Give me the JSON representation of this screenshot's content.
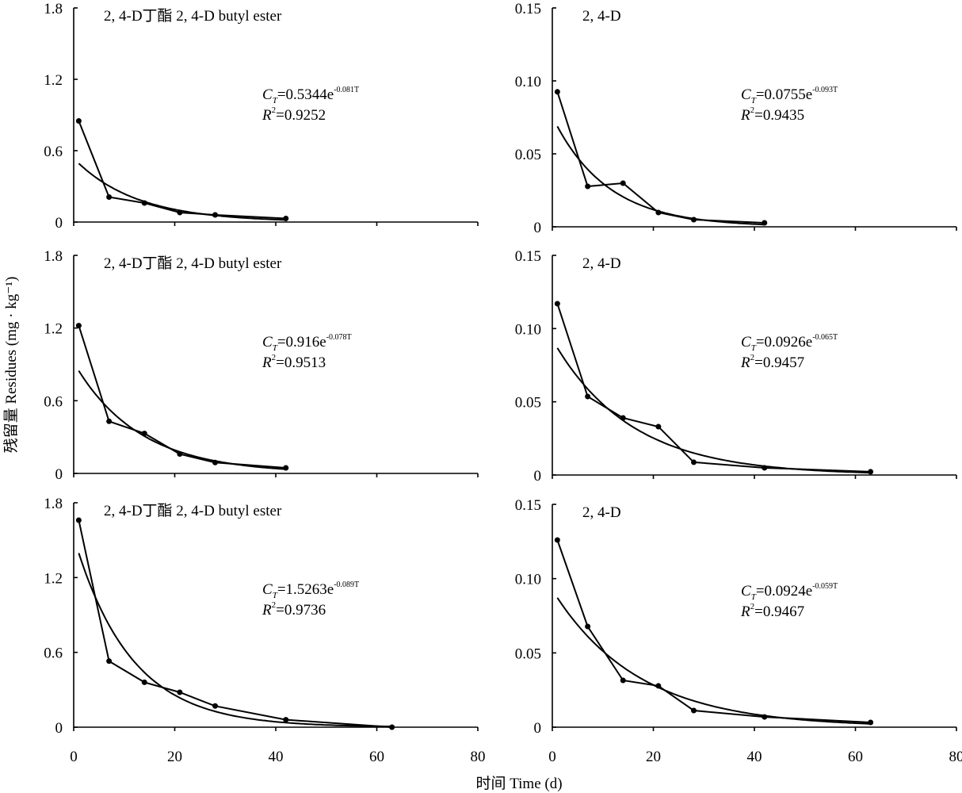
{
  "chart_data": {
    "type": "line",
    "ylabel": "残留量 Residues (mg · kg⁻¹)",
    "xlabel": "时间 Time (d)",
    "xlim": [
      0,
      80
    ],
    "x_ticks": [
      "0",
      "20",
      "40",
      "60",
      "80"
    ],
    "panels": [
      {
        "title": "2, 4-D丁酯 2, 4-D butyl ester",
        "ylim": [
          0,
          1.8
        ],
        "y_ticks": [
          "0",
          "0.6",
          "1.2",
          "1.8"
        ],
        "x": [
          1,
          7,
          14,
          21,
          28,
          42
        ],
        "y": [
          0.85,
          0.21,
          0.16,
          0.08,
          0.06,
          0.03
        ],
        "fit": {
          "a": 0.5344,
          "k": 0.081,
          "x_range": [
            1,
            42
          ]
        },
        "equation_coef": "0.5344",
        "equation_exp": "-0.081T",
        "r2": "0.9252"
      },
      {
        "title": "2, 4-D",
        "ylim": [
          0,
          0.15
        ],
        "y_ticks": [
          "0",
          "0.05",
          "0.10",
          "0.15"
        ],
        "x": [
          1,
          7,
          14,
          21,
          28,
          42
        ],
        "y": [
          0.0925,
          0.0277,
          0.0299,
          0.0098,
          0.0049,
          0.0027
        ],
        "fit": {
          "a": 0.0755,
          "k": 0.093,
          "x_range": [
            1,
            42
          ]
        },
        "equation_coef": "0.0755",
        "equation_exp": "-0.093T",
        "r2": "0.9435"
      },
      {
        "title": "2, 4-D丁酯 2, 4-D butyl ester",
        "ylim": [
          0,
          1.8
        ],
        "y_ticks": [
          "0",
          "0.6",
          "1.2",
          "1.8"
        ],
        "x": [
          1,
          7,
          14,
          21,
          28,
          42
        ],
        "y": [
          1.22,
          0.43,
          0.33,
          0.16,
          0.09,
          0.046
        ],
        "fit": {
          "a": 0.916,
          "k": 0.078,
          "x_range": [
            1,
            42
          ]
        },
        "equation_coef": "0.916",
        "equation_exp": "-0.078T",
        "r2": "0.9513"
      },
      {
        "title": "2, 4-D",
        "ylim": [
          0,
          0.15
        ],
        "y_ticks": [
          "0",
          "0.05",
          "0.10",
          "0.15"
        ],
        "x": [
          1,
          7,
          14,
          21,
          28,
          42,
          63
        ],
        "y": [
          0.117,
          0.0536,
          0.039,
          0.033,
          0.0087,
          0.0049,
          0.0022
        ],
        "fit": {
          "a": 0.0926,
          "k": 0.065,
          "x_range": [
            1,
            63
          ]
        },
        "equation_coef": "0.0926",
        "equation_exp": "-0.065T",
        "r2": "0.9457"
      },
      {
        "title": "2, 4-D丁酯 2, 4-D butyl ester",
        "ylim": [
          0,
          1.8
        ],
        "y_ticks": [
          "0",
          "0.6",
          "1.2",
          "1.8"
        ],
        "x": [
          1,
          7,
          14,
          21,
          28,
          42,
          63
        ],
        "y": [
          1.66,
          0.53,
          0.36,
          0.28,
          0.17,
          0.06,
          0.0
        ],
        "fit": {
          "a": 1.5263,
          "k": 0.089,
          "x_range": [
            1,
            63
          ]
        },
        "equation_coef": "1.5263",
        "equation_exp": "-0.089T",
        "r2": "0.9736"
      },
      {
        "title": "2, 4-D",
        "ylim": [
          0,
          0.15
        ],
        "y_ticks": [
          "0",
          "0.05",
          "0.10",
          "0.15"
        ],
        "x": [
          1,
          7,
          14,
          21,
          28,
          42,
          63
        ],
        "y": [
          0.126,
          0.0678,
          0.0315,
          0.0278,
          0.0112,
          0.0069,
          0.0032
        ],
        "fit": {
          "a": 0.0924,
          "k": 0.059,
          "x_range": [
            1,
            63
          ]
        },
        "equation_coef": "0.0924",
        "equation_exp": "-0.059T",
        "r2": "0.9467"
      }
    ]
  }
}
